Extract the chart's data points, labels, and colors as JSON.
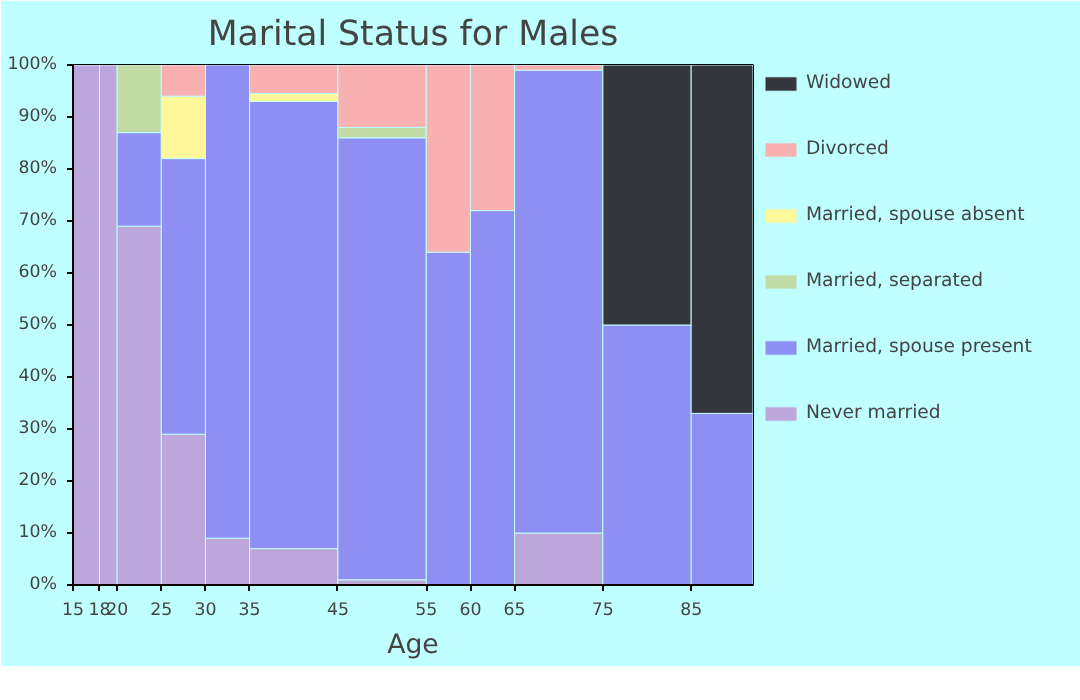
{
  "chart_data": {
    "type": "bar",
    "stacked": true,
    "title": "Marital Status for Males",
    "xlabel": "Age",
    "x": [
      16.5,
      19,
      22.5,
      27.5,
      32.5,
      40,
      50,
      57.5,
      62.5,
      70,
      80,
      88.5
    ],
    "xlim": [
      15,
      92
    ],
    "xticks": [
      15,
      18,
      20,
      25,
      30,
      35,
      45,
      55,
      60,
      65,
      75,
      85
    ],
    "ylim": [
      0,
      100
    ],
    "yticks": [
      {
        "value": 0,
        "label": "0%"
      },
      {
        "value": 10,
        "label": "10%"
      },
      {
        "value": 20,
        "label": "20%"
      },
      {
        "value": 30,
        "label": "30%"
      },
      {
        "value": 40,
        "label": "40%"
      },
      {
        "value": 50,
        "label": "50%"
      },
      {
        "value": 60,
        "label": "60%"
      },
      {
        "value": 70,
        "label": "70%"
      },
      {
        "value": 80,
        "label": "80%"
      },
      {
        "value": 90,
        "label": "90%"
      },
      {
        "value": 100,
        "label": "100%"
      }
    ],
    "legend": "right",
    "series": [
      {
        "name": "Never married",
        "color": "#bda6da",
        "values": [
          100,
          100,
          69,
          29,
          9,
          7,
          1,
          0,
          0,
          10,
          0,
          0
        ]
      },
      {
        "name": "Married, spouse present",
        "color": "#8f8ff3",
        "values": [
          0,
          0,
          18,
          53,
          91,
          86,
          85,
          64,
          72,
          89,
          50,
          33
        ]
      },
      {
        "name": "Married, separated",
        "color": "#c2dba6",
        "values": [
          0,
          0,
          13,
          0,
          0,
          0,
          2,
          0,
          0,
          0,
          0,
          0
        ]
      },
      {
        "name": "Married, spouse absent",
        "color": "#fff89a",
        "values": [
          0,
          0,
          0,
          12,
          0,
          1.5,
          0,
          0,
          0,
          0,
          0,
          0
        ]
      },
      {
        "name": "Divorced",
        "color": "#f8b0b0",
        "values": [
          0,
          0,
          0,
          6,
          0,
          5.5,
          12,
          36,
          28,
          1,
          0,
          0
        ]
      },
      {
        "name": "Widowed",
        "color": "#35363c",
        "values": [
          0,
          0,
          0,
          0,
          0,
          0,
          0,
          0,
          0,
          0,
          50,
          67
        ]
      }
    ]
  }
}
